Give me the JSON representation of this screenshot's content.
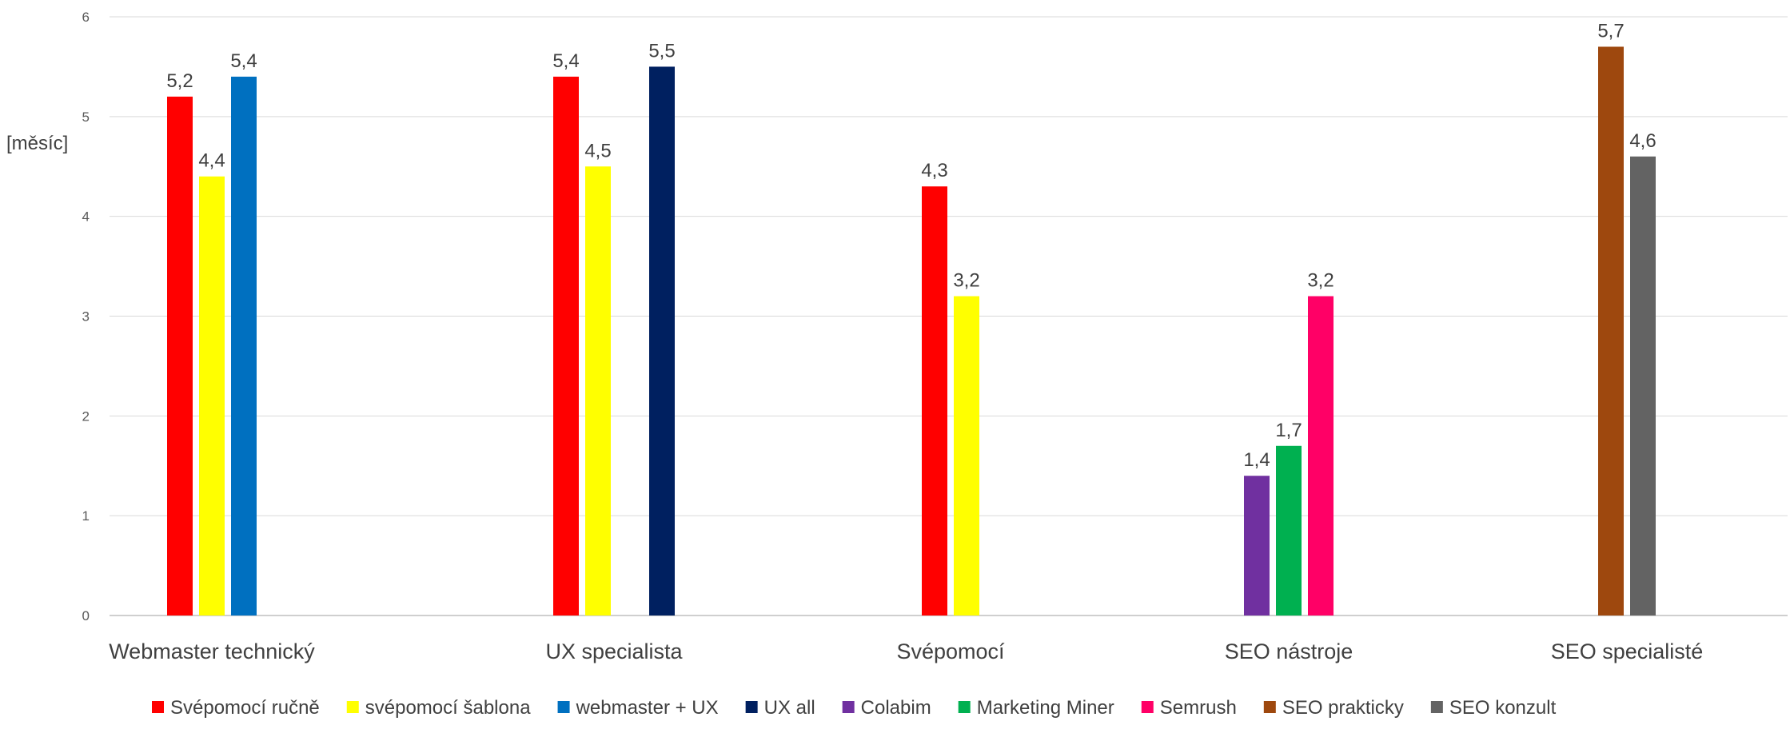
{
  "chart_data": {
    "type": "bar",
    "ylabel": "[měsíc]",
    "ylim": [
      0,
      6
    ],
    "yticks": [
      "0",
      "1",
      "2",
      "3",
      "4",
      "5",
      "6"
    ],
    "grid": true,
    "legend_position": "bottom",
    "categories": [
      "Webmaster technický",
      "UX specialista",
      "Svépomocí",
      "SEO nástroje",
      "SEO specialisté"
    ],
    "series": [
      {
        "name": "Svépomocí ručně",
        "color": "#FF0000",
        "values": [
          5.2,
          5.4,
          4.3,
          null,
          null
        ]
      },
      {
        "name": "svépomocí šablona",
        "color": "#FFFF00",
        "values": [
          4.4,
          4.5,
          3.2,
          null,
          null
        ]
      },
      {
        "name": "webmaster + UX",
        "color": "#0070C0",
        "values": [
          5.4,
          null,
          null,
          null,
          null
        ]
      },
      {
        "name": "UX all",
        "color": "#002060",
        "values": [
          null,
          5.5,
          null,
          null,
          null
        ]
      },
      {
        "name": "Colabim",
        "color": "#7030A0",
        "values": [
          null,
          null,
          null,
          1.4,
          null
        ]
      },
      {
        "name": "Marketing Miner",
        "color": "#00B050",
        "values": [
          null,
          null,
          null,
          1.7,
          null
        ]
      },
      {
        "name": "Semrush",
        "color": "#FF0066",
        "values": [
          null,
          null,
          null,
          3.2,
          null
        ]
      },
      {
        "name": "SEO prakticky",
        "color": "#9E480E",
        "values": [
          null,
          null,
          null,
          null,
          5.7
        ]
      },
      {
        "name": "SEO konzult",
        "color": "#636363",
        "values": [
          null,
          null,
          null,
          null,
          4.6
        ]
      }
    ],
    "data_labels": [
      [
        "5,2",
        "5,4",
        "4,3",
        "",
        ""
      ],
      [
        "4,4",
        "4,5",
        "3,2",
        "",
        ""
      ],
      [
        "5,4",
        "",
        "",
        "",
        ""
      ],
      [
        "",
        "5,5",
        "",
        "",
        ""
      ],
      [
        "",
        "",
        "",
        "1,4",
        ""
      ],
      [
        "",
        "",
        "",
        "1,7",
        ""
      ],
      [
        "",
        "",
        "",
        "3,2",
        ""
      ],
      [
        "",
        "",
        "",
        "",
        "5,7"
      ],
      [
        "",
        "",
        "",
        "",
        "4,6"
      ]
    ]
  }
}
